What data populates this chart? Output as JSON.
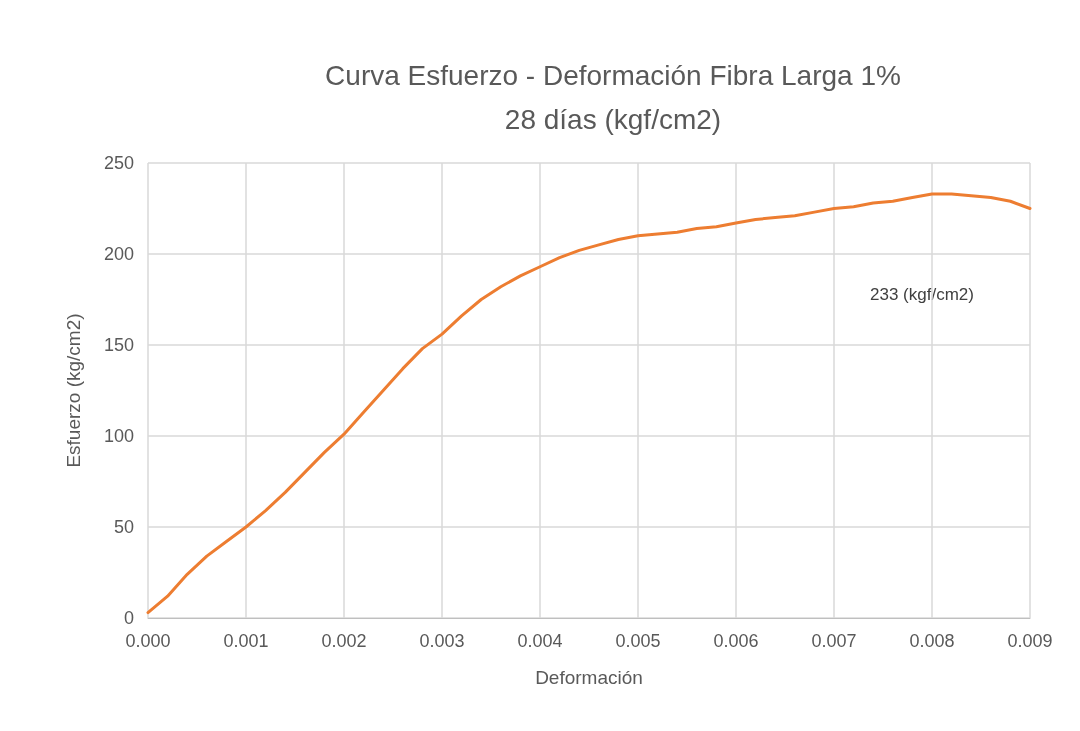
{
  "chart_data": {
    "type": "line",
    "title": "Curva Esfuerzo - Deformación Fibra Larga 1%\n28 días (kgf/cm2)",
    "xlabel": "Deformación",
    "ylabel": "Esfuerzo (kg/cm2)",
    "annotations": [
      "233 (kgf/cm2)"
    ],
    "series": [
      {
        "color": "#ed7d31",
        "x": [
          0,
          0.0002,
          0.0004,
          0.0006,
          0.0008,
          0.001,
          0.0012,
          0.0014,
          0.0016,
          0.0018,
          0.002,
          0.0022,
          0.0024,
          0.0026,
          0.0028,
          0.003,
          0.0032,
          0.0034,
          0.0036,
          0.0038,
          0.004,
          0.0042,
          0.0044,
          0.0046,
          0.0048,
          0.005,
          0.0052,
          0.0054,
          0.0056,
          0.0058,
          0.006,
          0.0062,
          0.0064,
          0.0066,
          0.0068,
          0.007,
          0.0072,
          0.0074,
          0.0076,
          0.0078,
          0.008,
          0.0082,
          0.0084,
          0.0086,
          0.0088,
          0.009
        ],
        "values": [
          3,
          12,
          24,
          34,
          42,
          50,
          59,
          69,
          80,
          91,
          101,
          113,
          125,
          137,
          148,
          156,
          166,
          175,
          182,
          188,
          193,
          198,
          202,
          205,
          208,
          210,
          211,
          212,
          214,
          215,
          217,
          219,
          220,
          221,
          223,
          225,
          226,
          228,
          229,
          231,
          233,
          233,
          232,
          231,
          229,
          225
        ]
      }
    ],
    "xlim": [
      0,
      0.009
    ],
    "xticks": [
      {
        "value": 0,
        "label": "0.000"
      },
      {
        "value": 0.001,
        "label": "0.001"
      },
      {
        "value": 0.002,
        "label": "0.002"
      },
      {
        "value": 0.003,
        "label": "0.003"
      },
      {
        "value": 0.004,
        "label": "0.004"
      },
      {
        "value": 0.005,
        "label": "0.005"
      },
      {
        "value": 0.006,
        "label": "0.006"
      },
      {
        "value": 0.007,
        "label": "0.007"
      },
      {
        "value": 0.008,
        "label": "0.008"
      },
      {
        "value": 0.009,
        "label": "0.009"
      }
    ],
    "ylim": [
      0,
      250
    ],
    "yticks": [
      0,
      50,
      100,
      150,
      200,
      250
    ],
    "grid": true,
    "marker": "none",
    "line_style": "solid"
  }
}
